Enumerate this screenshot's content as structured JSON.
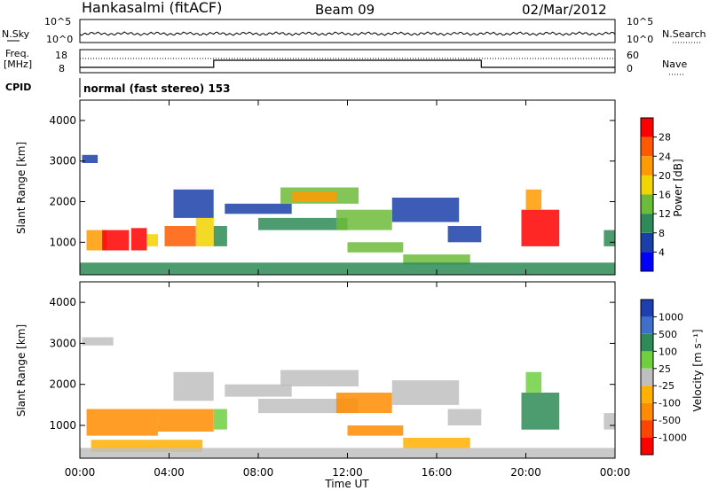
{
  "header": {
    "station": "Hankasalmi (fitACF)",
    "beam": "Beam 09",
    "date": "02/Mar/2012"
  },
  "noise_panel": {
    "left_label": "N.Sky",
    "right_label": "N.Search",
    "left_ticks": [
      "10^5",
      "10^0"
    ],
    "right_ticks": [
      "10^5",
      "10^0"
    ]
  },
  "freq_panel": {
    "left_label_line1": "Freq.",
    "left_label_line2": "[MHz]",
    "right_label": "Nave",
    "left_ticks": [
      "18",
      "8"
    ],
    "right_ticks": [
      "60",
      "0"
    ],
    "step_segments": [
      {
        "from_hour": 0,
        "to_hour": 6,
        "level": "low"
      },
      {
        "from_hour": 6,
        "to_hour": 18,
        "level": "high"
      },
      {
        "from_hour": 18,
        "to_hour": 24,
        "level": "low"
      }
    ]
  },
  "cpid": {
    "label": "CPID",
    "program": "normal (fast stereo) 153"
  },
  "chart_data": [
    {
      "type": "heatmap",
      "name": "power",
      "ylabel": "Slant Range [km]",
      "ylim": [
        200,
        4500
      ],
      "xlim": [
        0,
        24
      ],
      "yticks": [
        "4000",
        "3000",
        "2000",
        "1000"
      ],
      "colorbar_label": "Power [dB]",
      "colorbar_ticks": [
        "28",
        "24",
        "20",
        "16",
        "12",
        "8",
        "4"
      ],
      "colorbar_colors": [
        "#0000ff",
        "#1a3fa8",
        "#2e8b57",
        "#6dbb3a",
        "#f2d400",
        "#ff9a00",
        "#ff5a00",
        "#ff0000"
      ],
      "echo_regions": [
        {
          "t0": 0.1,
          "t1": 0.8,
          "r0": 2950,
          "r1": 3150,
          "level": 1
        },
        {
          "t0": 0.3,
          "t1": 1.2,
          "r0": 800,
          "r1": 1300,
          "level": 5
        },
        {
          "t0": 1.0,
          "t1": 2.2,
          "r0": 800,
          "r1": 1300,
          "level": 7
        },
        {
          "t0": 2.3,
          "t1": 3.0,
          "r0": 800,
          "r1": 1350,
          "level": 7
        },
        {
          "t0": 3.0,
          "t1": 3.5,
          "r0": 900,
          "r1": 1200,
          "level": 4
        },
        {
          "t0": 3.8,
          "t1": 5.2,
          "r0": 900,
          "r1": 1400,
          "level": 6
        },
        {
          "t0": 5.2,
          "t1": 6.0,
          "r0": 900,
          "r1": 1600,
          "level": 4
        },
        {
          "t0": 6.0,
          "t1": 6.6,
          "r0": 900,
          "r1": 1400,
          "level": 2
        },
        {
          "t0": 4.2,
          "t1": 6.0,
          "r0": 1600,
          "r1": 2300,
          "level": 1
        },
        {
          "t0": 6.5,
          "t1": 9.5,
          "r0": 1700,
          "r1": 1950,
          "level": 1
        },
        {
          "t0": 8.0,
          "t1": 12.0,
          "r0": 1300,
          "r1": 1600,
          "level": 2
        },
        {
          "t0": 9.0,
          "t1": 12.5,
          "r0": 1950,
          "r1": 2350,
          "level": 3
        },
        {
          "t0": 9.5,
          "t1": 11.5,
          "r0": 2000,
          "r1": 2250,
          "level": 5
        },
        {
          "t0": 11.5,
          "t1": 14.0,
          "r0": 1300,
          "r1": 1800,
          "level": 3
        },
        {
          "t0": 12.0,
          "t1": 14.5,
          "r0": 750,
          "r1": 1000,
          "level": 3
        },
        {
          "t0": 14.0,
          "t1": 17.0,
          "r0": 1500,
          "r1": 2100,
          "level": 1
        },
        {
          "t0": 14.5,
          "t1": 17.5,
          "r0": 450,
          "r1": 700,
          "level": 3
        },
        {
          "t0": 16.5,
          "t1": 18.0,
          "r0": 1000,
          "r1": 1400,
          "level": 1
        },
        {
          "t0": 19.8,
          "t1": 21.5,
          "r0": 900,
          "r1": 1800,
          "level": 7
        },
        {
          "t0": 20.0,
          "t1": 20.7,
          "r0": 1800,
          "r1": 2300,
          "level": 5
        },
        {
          "t0": 23.5,
          "t1": 24.0,
          "r0": 900,
          "r1": 1300,
          "level": 2
        },
        {
          "t0": 0.0,
          "t1": 24.0,
          "r0": 200,
          "r1": 500,
          "level": 2
        }
      ]
    },
    {
      "type": "heatmap",
      "name": "velocity",
      "ylabel": "Slant Range [km]",
      "ylim": [
        200,
        4500
      ],
      "xlim": [
        0,
        24
      ],
      "xlabel": "Time UT",
      "xticks": [
        "00:00",
        "04:00",
        "08:00",
        "12:00",
        "16:00",
        "20:00",
        "00:00"
      ],
      "yticks": [
        "4000",
        "3000",
        "2000",
        "1000"
      ],
      "colorbar_label": "Velocity [m s⁻¹]",
      "colorbar_ticks": [
        "1000",
        "500",
        "100",
        "25",
        "-25",
        "-100",
        "-500",
        "-1000"
      ],
      "colorbar_colors": [
        "#ff0000",
        "#ff4500",
        "#ff8c00",
        "#ffb000",
        "#bfbfbf",
        "#6fcf3f",
        "#2e8b57",
        "#3f6fc8",
        "#1f3fb0"
      ],
      "echo_regions": [
        {
          "t0": 0.1,
          "t1": 1.5,
          "r0": 2950,
          "r1": 3150,
          "level": 4
        },
        {
          "t0": 0.3,
          "t1": 3.5,
          "r0": 750,
          "r1": 1400,
          "level": 2
        },
        {
          "t0": 3.5,
          "t1": 6.0,
          "r0": 850,
          "r1": 1400,
          "level": 2
        },
        {
          "t0": 0.5,
          "t1": 5.5,
          "r0": 350,
          "r1": 650,
          "level": 3
        },
        {
          "t0": 4.2,
          "t1": 6.0,
          "r0": 1600,
          "r1": 2300,
          "level": 4
        },
        {
          "t0": 6.0,
          "t1": 6.6,
          "r0": 900,
          "r1": 1400,
          "level": 5
        },
        {
          "t0": 6.5,
          "t1": 9.5,
          "r0": 1700,
          "r1": 2000,
          "level": 4
        },
        {
          "t0": 8.0,
          "t1": 12.5,
          "r0": 1300,
          "r1": 1650,
          "level": 4
        },
        {
          "t0": 9.0,
          "t1": 12.5,
          "r0": 1950,
          "r1": 2350,
          "level": 4
        },
        {
          "t0": 11.5,
          "t1": 14.0,
          "r0": 1300,
          "r1": 1800,
          "level": 2
        },
        {
          "t0": 12.0,
          "t1": 14.5,
          "r0": 750,
          "r1": 1000,
          "level": 2
        },
        {
          "t0": 14.0,
          "t1": 17.0,
          "r0": 1500,
          "r1": 2100,
          "level": 4
        },
        {
          "t0": 14.5,
          "t1": 17.5,
          "r0": 450,
          "r1": 700,
          "level": 3
        },
        {
          "t0": 16.5,
          "t1": 18.0,
          "r0": 1000,
          "r1": 1400,
          "level": 4
        },
        {
          "t0": 19.8,
          "t1": 21.5,
          "r0": 900,
          "r1": 1800,
          "level": 6
        },
        {
          "t0": 20.0,
          "t1": 20.7,
          "r0": 1800,
          "r1": 2300,
          "level": 5
        },
        {
          "t0": 23.5,
          "t1": 24.0,
          "r0": 900,
          "r1": 1300,
          "level": 4
        },
        {
          "t0": 0.0,
          "t1": 24.0,
          "r0": 200,
          "r1": 450,
          "level": 4
        }
      ]
    }
  ]
}
